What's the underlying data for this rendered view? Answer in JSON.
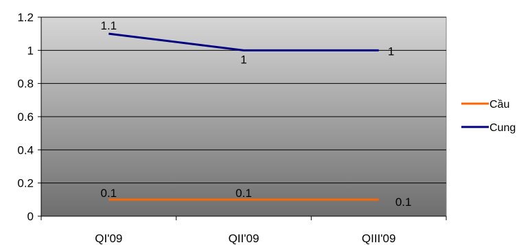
{
  "chart_data": {
    "type": "line",
    "categories": [
      "QI'09",
      "QII'09",
      "QIII'09"
    ],
    "series": [
      {
        "name": "Cầu",
        "values": [
          0.1,
          0.1,
          0.1
        ],
        "color": "#ff6600",
        "labels": [
          "0.1",
          "0.1",
          "0.1"
        ]
      },
      {
        "name": "Cung",
        "values": [
          1.1,
          1.0,
          1.0
        ],
        "color": "#000080",
        "labels": [
          "1.1",
          "1",
          "1"
        ]
      }
    ],
    "ylim": [
      0,
      1.2
    ],
    "yticks": [
      0,
      0.2,
      0.4,
      0.6,
      0.8,
      1,
      1.2
    ],
    "ytick_labels": [
      "0",
      "0.2",
      "0.4",
      "0.6",
      "0.8",
      "1",
      "1.2"
    ],
    "grid": true,
    "legend_position": "right",
    "plot_background": "gradient light gray to dark gray"
  }
}
